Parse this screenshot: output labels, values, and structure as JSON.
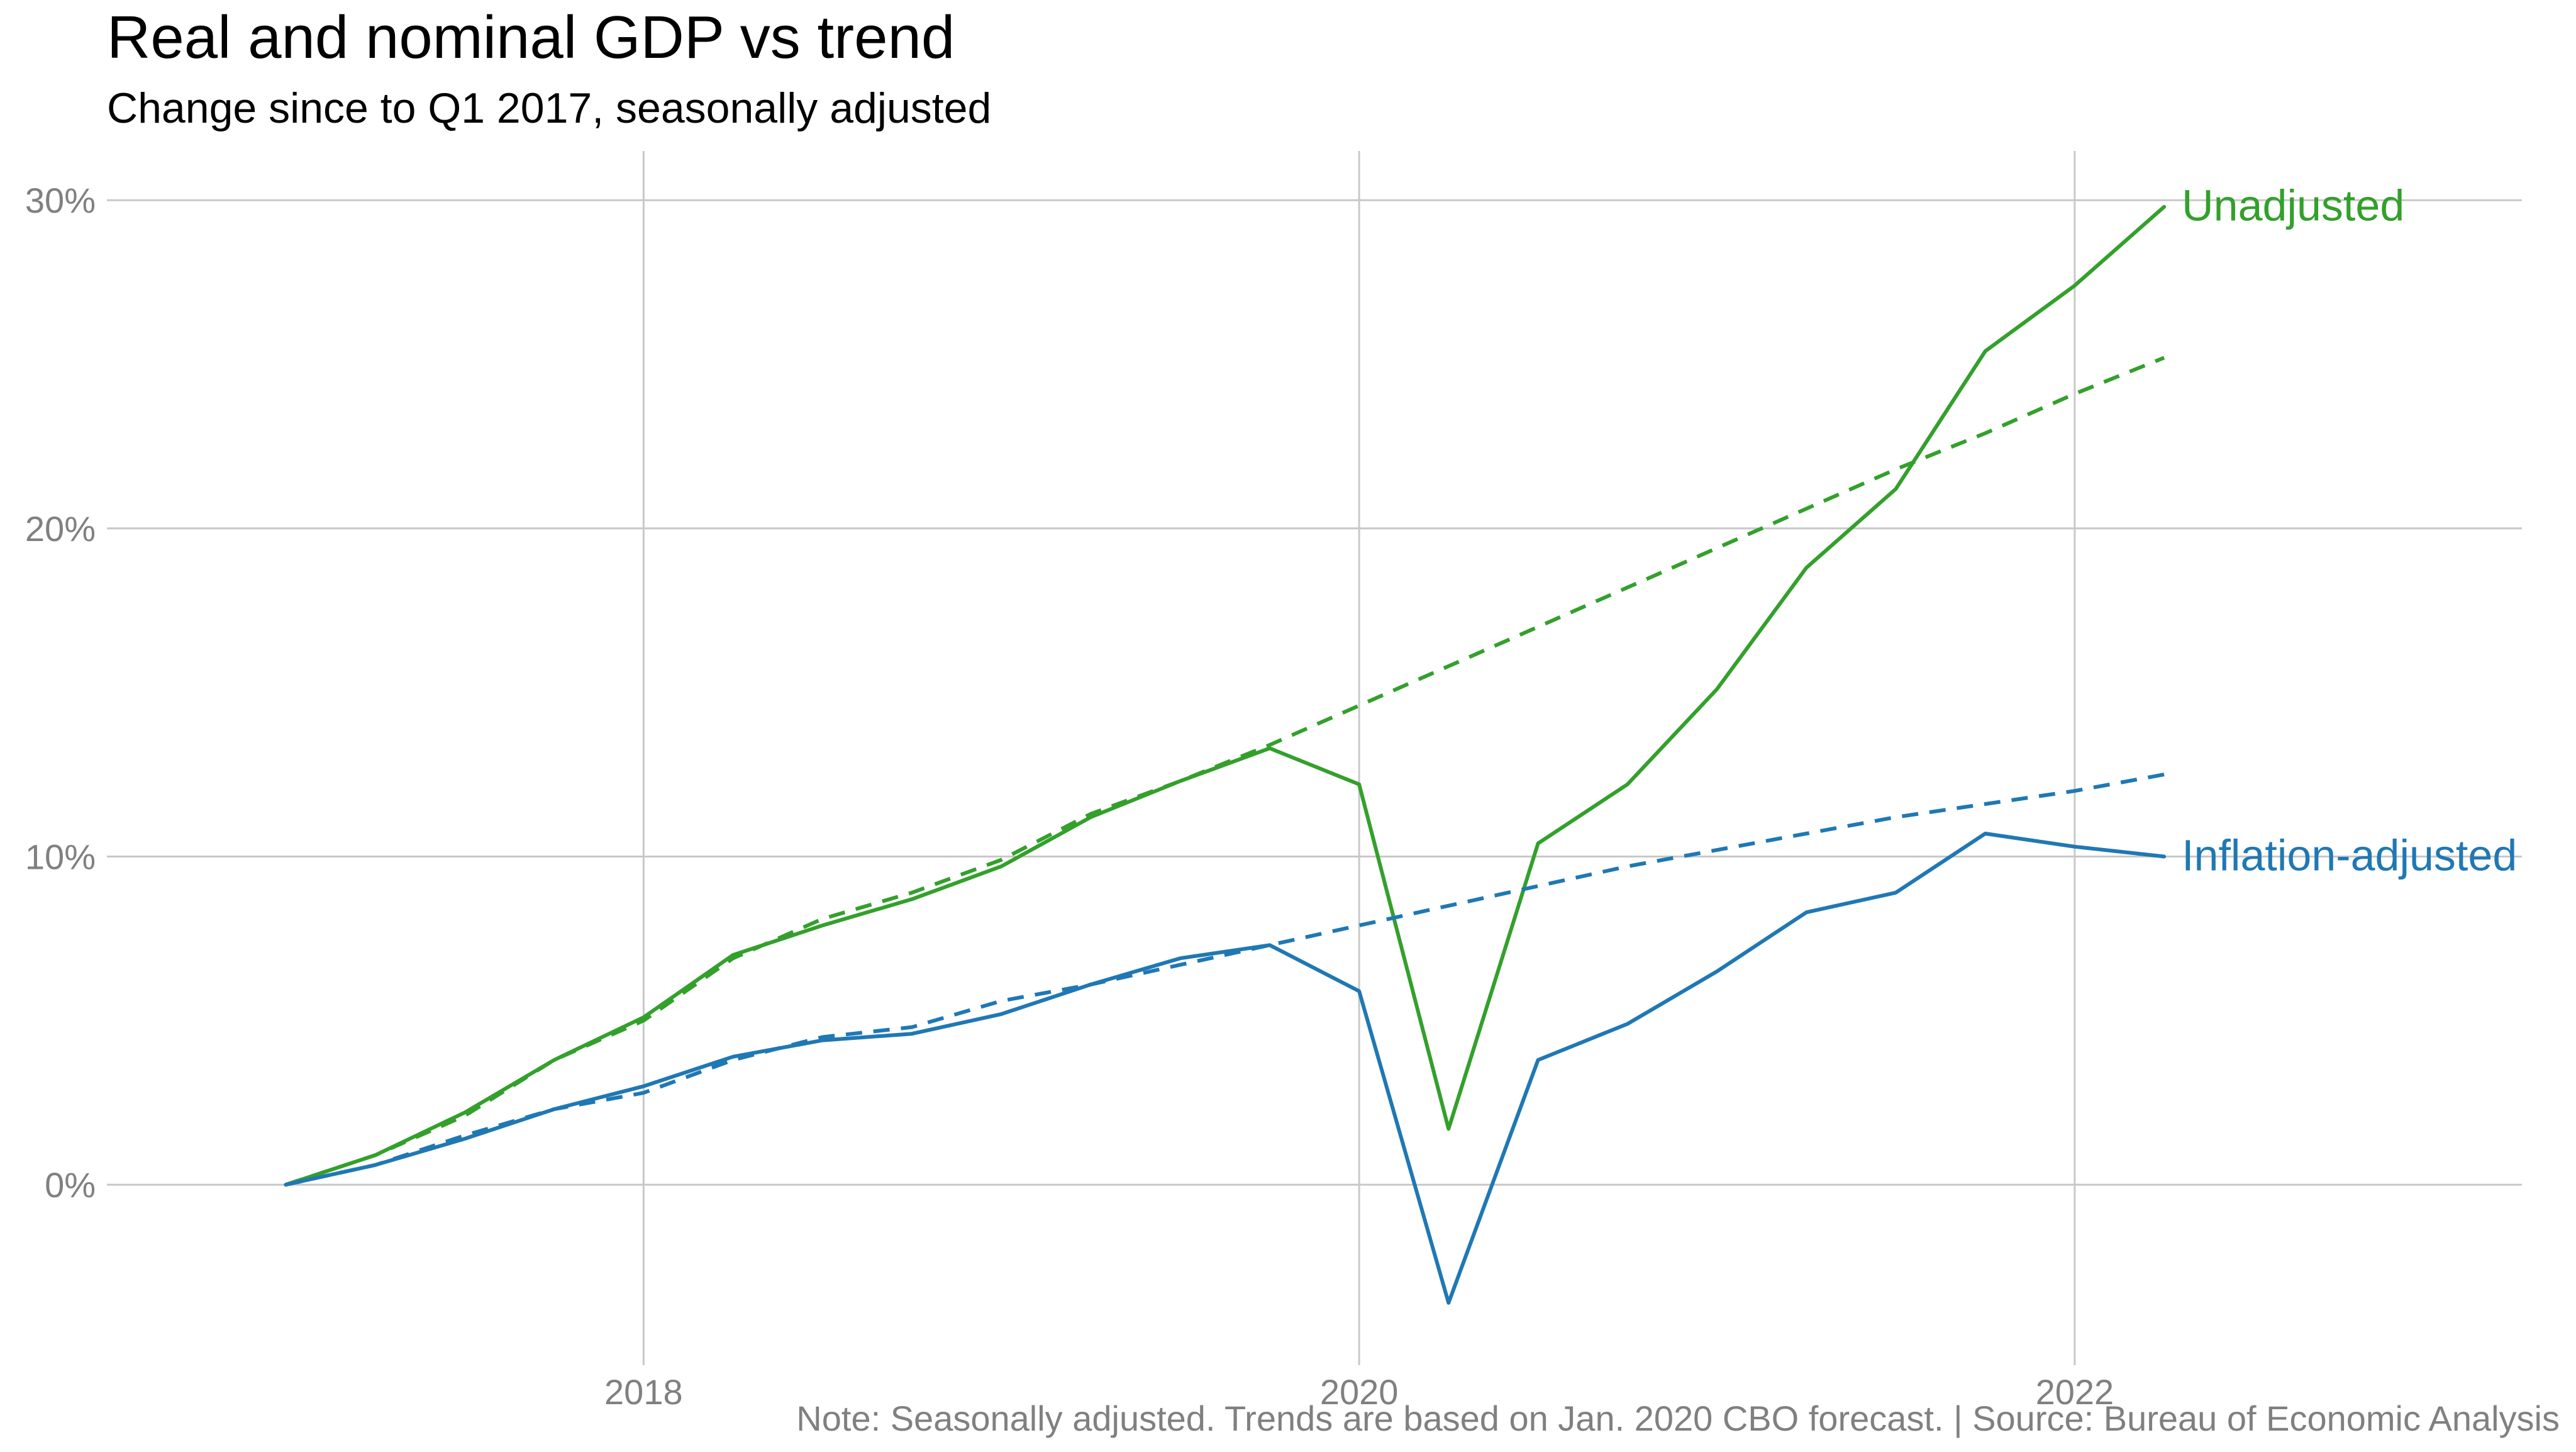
{
  "chart_data": {
    "type": "line",
    "title": "Real and nominal GDP vs trend",
    "subtitle": "Change since to Q1 2017, seasonally adjusted",
    "caption": "Note: Seasonally adjusted. Trends are based on Jan. 2020 CBO forecast. | Source: Bureau of Economic Analysis",
    "xlabel": "",
    "ylabel": "",
    "xlim": [
      2016.5,
      2023.25
    ],
    "ylim": [
      -5.5,
      31.5
    ],
    "x_ticks": [
      {
        "value": 2018,
        "label": "2018"
      },
      {
        "value": 2020,
        "label": "2020"
      },
      {
        "value": 2022,
        "label": "2022"
      }
    ],
    "y_ticks": [
      {
        "value": 0,
        "label": "0%"
      },
      {
        "value": 10,
        "label": "10%"
      },
      {
        "value": 20,
        "label": "20%"
      },
      {
        "value": 30,
        "label": "30%"
      }
    ],
    "grid": true,
    "colors": {
      "unadjusted": "#33a02c",
      "inflation": "#1f78b4"
    },
    "series": [
      {
        "name": "Unadjusted",
        "style": "solid",
        "color": "#33a02c",
        "label": "Unadjusted",
        "x": [
          2017.0,
          2017.25,
          2017.5,
          2017.75,
          2018.0,
          2018.25,
          2018.5,
          2018.75,
          2019.0,
          2019.25,
          2019.5,
          2019.75,
          2020.0,
          2020.25,
          2020.5,
          2020.75,
          2021.0,
          2021.25,
          2021.5,
          2021.75,
          2022.0,
          2022.25
        ],
        "y": [
          0.0,
          0.9,
          2.2,
          3.8,
          5.1,
          7.0,
          7.9,
          8.7,
          9.7,
          11.2,
          12.3,
          13.3,
          12.2,
          1.7,
          10.4,
          12.2,
          15.1,
          18.8,
          21.2,
          25.4,
          27.4,
          29.8
        ]
      },
      {
        "name": "Inflation-adjusted",
        "style": "solid",
        "color": "#1f78b4",
        "label": "Inflation-adjusted",
        "x": [
          2017.0,
          2017.25,
          2017.5,
          2017.75,
          2018.0,
          2018.25,
          2018.5,
          2018.75,
          2019.0,
          2019.25,
          2019.5,
          2019.75,
          2020.0,
          2020.25,
          2020.5,
          2020.75,
          2021.0,
          2021.25,
          2021.5,
          2021.75,
          2022.0,
          2022.25
        ],
        "y": [
          0.0,
          0.6,
          1.4,
          2.3,
          3.0,
          3.9,
          4.4,
          4.6,
          5.2,
          6.1,
          6.9,
          7.3,
          5.9,
          -3.6,
          3.8,
          4.9,
          6.5,
          8.3,
          8.9,
          10.7,
          10.3,
          10.0
        ]
      },
      {
        "name": "Unadjusted trend",
        "style": "dashed",
        "color": "#33a02c",
        "x": [
          2017.0,
          2017.25,
          2017.5,
          2017.75,
          2018.0,
          2018.25,
          2018.5,
          2018.75,
          2019.0,
          2019.25,
          2019.5,
          2019.75,
          2020.0,
          2020.25,
          2020.5,
          2020.75,
          2021.0,
          2021.25,
          2021.5,
          2021.75,
          2022.0,
          2022.25
        ],
        "y": [
          0.0,
          0.9,
          2.1,
          3.8,
          5.0,
          6.9,
          8.1,
          8.9,
          9.9,
          11.3,
          12.3,
          13.4,
          14.6,
          15.8,
          17.0,
          18.2,
          19.4,
          20.6,
          21.8,
          22.9,
          24.1,
          25.2
        ]
      },
      {
        "name": "Inflation-adjusted trend",
        "style": "dashed",
        "color": "#1f78b4",
        "x": [
          2017.0,
          2017.25,
          2017.5,
          2017.75,
          2018.0,
          2018.25,
          2018.5,
          2018.75,
          2019.0,
          2019.25,
          2019.5,
          2019.75,
          2020.0,
          2020.25,
          2020.5,
          2020.75,
          2021.0,
          2021.25,
          2021.5,
          2021.75,
          2022.0,
          2022.25
        ],
        "y": [
          0.0,
          0.6,
          1.5,
          2.3,
          2.8,
          3.8,
          4.5,
          4.8,
          5.6,
          6.1,
          6.7,
          7.3,
          7.9,
          8.5,
          9.1,
          9.7,
          10.2,
          10.7,
          11.2,
          11.6,
          12.0,
          12.5
        ]
      }
    ]
  }
}
